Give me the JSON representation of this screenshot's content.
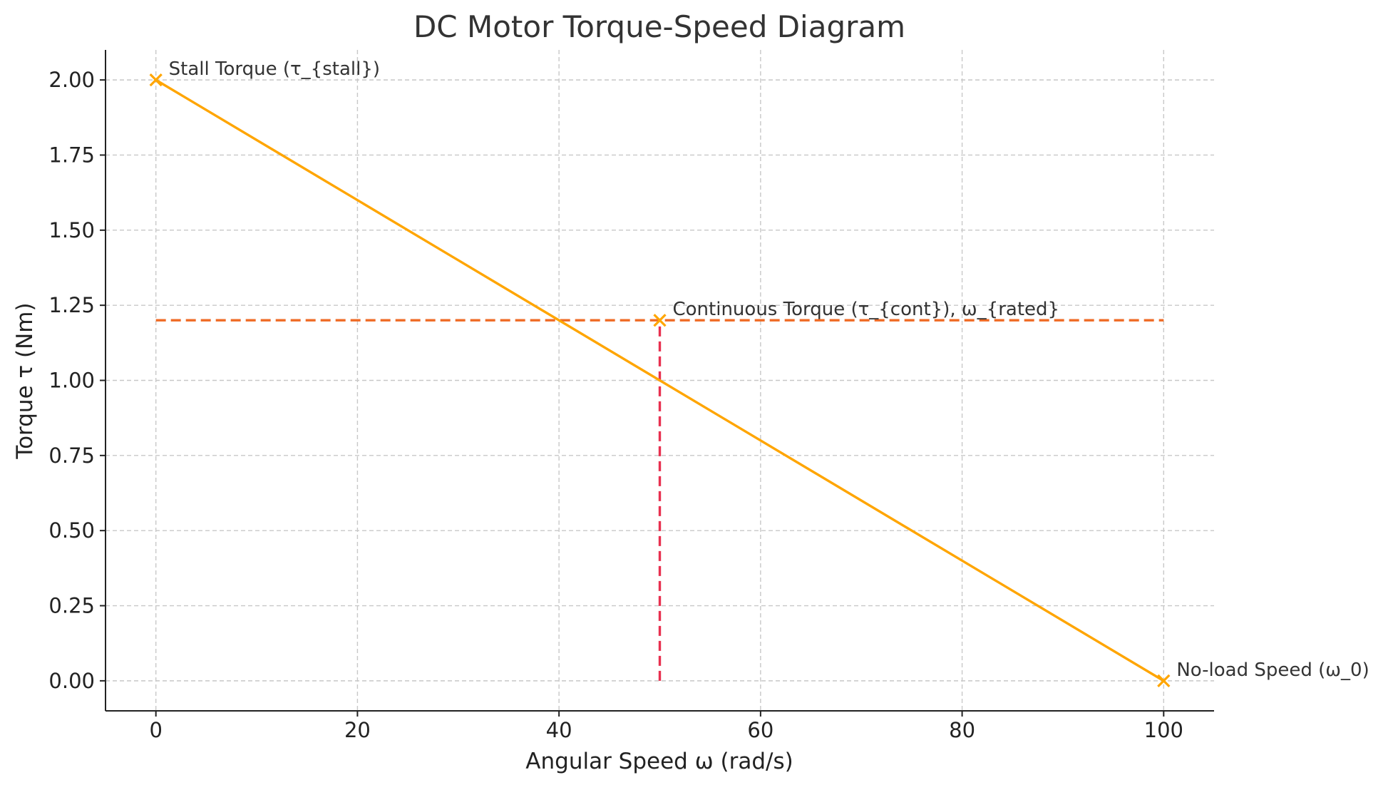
{
  "chart_data": {
    "type": "line",
    "title": "DC Motor Torque-Speed Diagram",
    "xlabel": "Angular Speed ω (rad/s)",
    "ylabel": "Torque τ (Nm)",
    "xlim": [
      -5,
      105
    ],
    "ylim": [
      -0.1,
      2.1
    ],
    "x_ticks": [
      0,
      20,
      40,
      60,
      80,
      100
    ],
    "x_tick_labels": [
      "0",
      "20",
      "40",
      "60",
      "80",
      "100"
    ],
    "y_ticks": [
      0,
      0.25,
      0.5,
      0.75,
      1.0,
      1.25,
      1.5,
      1.75,
      2.0
    ],
    "y_tick_labels": [
      "0.00",
      "0.25",
      "0.50",
      "0.75",
      "1.00",
      "1.25",
      "1.50",
      "1.75",
      "2.00"
    ],
    "grid": true,
    "colors": {
      "curve": "#ffa500",
      "continuous_torque": "#ef6a24",
      "rated_speed": "#e8304f"
    },
    "series": [
      {
        "kind": "solid-line",
        "x": [
          0,
          100
        ],
        "y": [
          2.0,
          0.0
        ]
      },
      {
        "kind": "dashed-horizontal",
        "x": [
          0,
          100
        ],
        "y": [
          1.2,
          1.2
        ]
      },
      {
        "kind": "dashed-vertical",
        "x": [
          50,
          50
        ],
        "y": [
          0,
          1.2
        ]
      }
    ],
    "markers": [
      {
        "x": 0,
        "y": 2.0,
        "label": "Stall Torque (τ_{stall})"
      },
      {
        "x": 50,
        "y": 1.2,
        "label": "Continuous Torque (τ_{cont}), ω_{rated}"
      },
      {
        "x": 100,
        "y": 0.0,
        "label": "No-load Speed (ω_0)"
      }
    ]
  }
}
